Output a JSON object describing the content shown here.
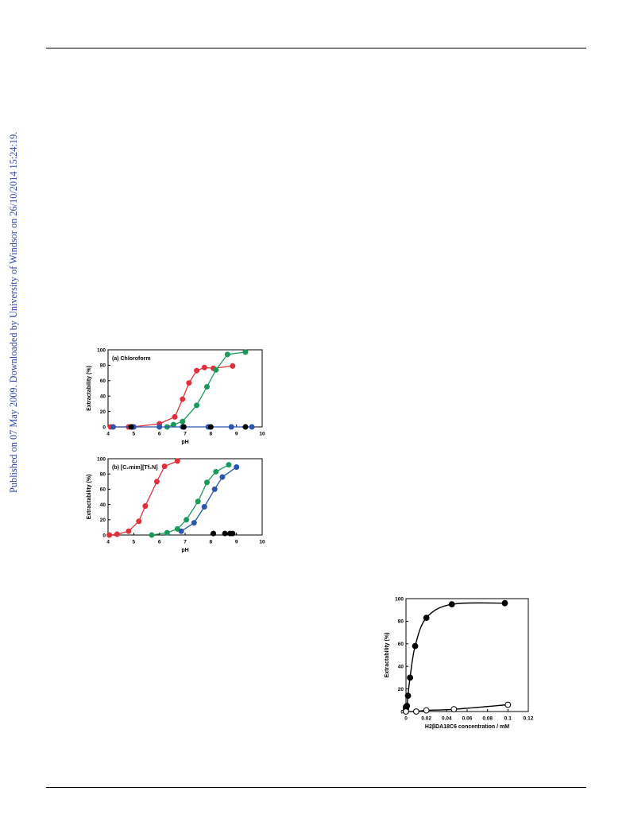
{
  "page": {
    "sidebar_text": "Published on 07 May 2009. Downloaded by University of Windsor on 26/10/2014 15:24:19."
  },
  "colors": {
    "red": "#e0303a",
    "green": "#1a9a5a",
    "blue": "#2a56b0",
    "black": "#000000"
  },
  "chart_data": [
    {
      "type": "line",
      "title": "(a) Chloroform",
      "xlabel": "pH",
      "ylabel": "Extractability (%)",
      "xlim": [
        4,
        10
      ],
      "ylim": [
        0,
        100
      ],
      "xticks": [
        "4",
        "5",
        "6",
        "7",
        "8",
        "9",
        "10"
      ],
      "yticks": [
        "0",
        "20",
        "40",
        "60",
        "80",
        "100"
      ],
      "series": [
        {
          "color": "red",
          "connected": true,
          "x": [
            4.1,
            4.8,
            4.95,
            6.0,
            6.6,
            6.9,
            7.15,
            7.45,
            7.75,
            8.1,
            8.85
          ],
          "y": [
            0,
            0,
            0,
            4,
            13,
            36,
            57,
            73,
            77,
            76,
            79
          ]
        },
        {
          "color": "green",
          "connected": true,
          "x": [
            6.3,
            6.55,
            6.9,
            7.45,
            7.85,
            8.2,
            8.65,
            9.35
          ],
          "y": [
            0,
            3,
            7,
            28,
            52,
            74,
            94,
            97
          ]
        },
        {
          "color": "blue",
          "connected": true,
          "x": [
            4.2,
            5.0,
            6.0,
            6.9,
            7.9,
            8.8,
            9.6
          ],
          "y": [
            0,
            0,
            0,
            0,
            0,
            0,
            0
          ]
        },
        {
          "color": "black",
          "connected": false,
          "x": [
            4.9,
            6.95,
            8.0,
            9.35
          ],
          "y": [
            0,
            0,
            0,
            0
          ]
        }
      ]
    },
    {
      "type": "line",
      "title": "(b) [C₂mim][Tf₂N]",
      "xlabel": "pH",
      "ylabel": "Extractability (%)",
      "xlim": [
        4,
        10
      ],
      "ylim": [
        0,
        100
      ],
      "xticks": [
        "4",
        "5",
        "6",
        "7",
        "8",
        "9",
        "10"
      ],
      "yticks": [
        "0",
        "20",
        "40",
        "60",
        "80",
        "100"
      ],
      "series": [
        {
          "color": "red",
          "connected": true,
          "x": [
            4.05,
            4.35,
            4.8,
            5.2,
            5.45,
            5.9,
            6.2,
            6.7
          ],
          "y": [
            0,
            1,
            5,
            18,
            38,
            70,
            90,
            97
          ]
        },
        {
          "color": "green",
          "connected": true,
          "x": [
            5.7,
            6.3,
            6.7,
            7.05,
            7.5,
            7.85,
            8.2,
            8.7
          ],
          "y": [
            0,
            3,
            8,
            20,
            44,
            69,
            83,
            92
          ]
        },
        {
          "color": "blue",
          "connected": true,
          "x": [
            6.85,
            7.35,
            7.75,
            8.15,
            8.45,
            9.0
          ],
          "y": [
            5,
            16,
            37,
            60,
            76,
            89
          ]
        },
        {
          "color": "black",
          "connected": false,
          "x": [
            8.1,
            8.55,
            8.75,
            8.85
          ],
          "y": [
            2,
            2,
            2,
            2
          ]
        }
      ]
    },
    {
      "type": "line",
      "title": "",
      "xlabel": "H2βDA18C6 concentration / mM",
      "ylabel": "Extractability (%)",
      "xlim": [
        0,
        0.12
      ],
      "ylim": [
        0,
        100
      ],
      "xticks": [
        "0",
        "0.02",
        "0.04",
        "0.06",
        "0.08",
        "0.1",
        "0.12"
      ],
      "yticks": [
        "0",
        "20",
        "40",
        "60",
        "80",
        "100"
      ],
      "series": [
        {
          "marker": "filled",
          "connected": true,
          "x": [
            0,
            0,
            0.001,
            0.002,
            0.004,
            0.009,
            0.02,
            0.045,
            0.097
          ],
          "y": [
            2,
            4,
            5,
            14,
            30,
            58,
            83,
            95,
            96
          ]
        },
        {
          "marker": "open",
          "connected": true,
          "x": [
            0,
            0.01,
            0.02,
            0.047,
            0.1
          ],
          "y": [
            0,
            0,
            1,
            2,
            6
          ]
        }
      ]
    }
  ]
}
